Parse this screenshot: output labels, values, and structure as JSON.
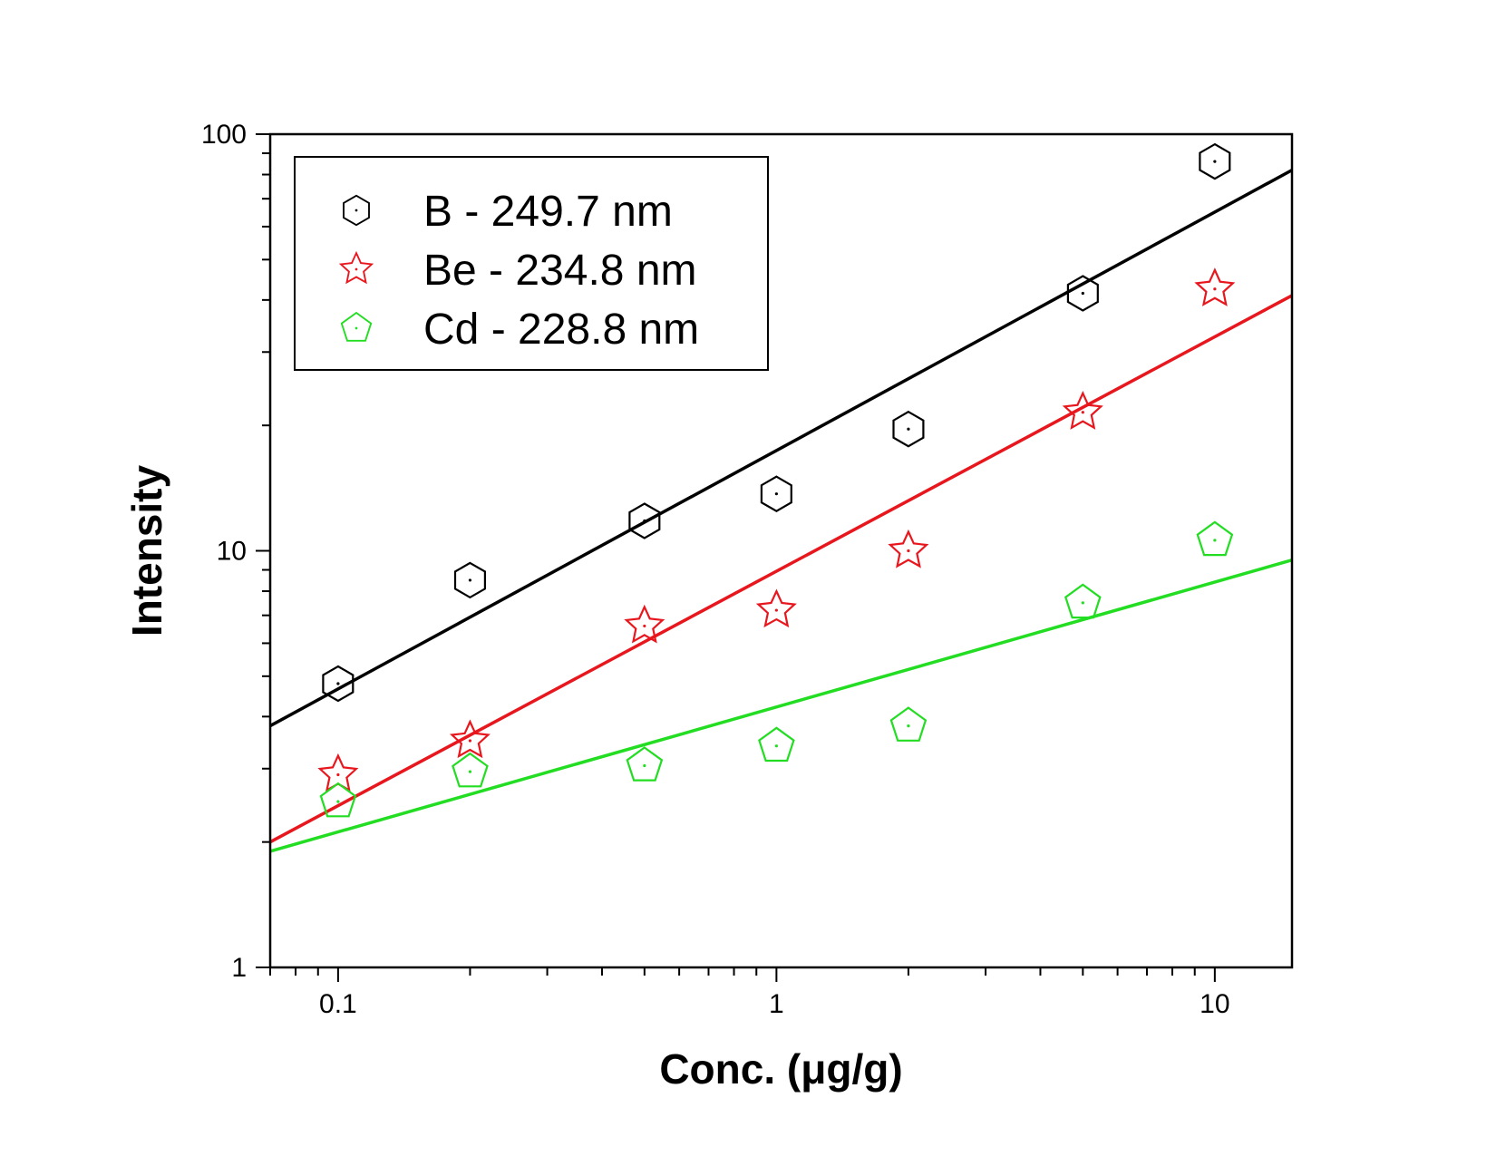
{
  "chart_data": {
    "type": "scatter",
    "xlabel": "Conc. (μg/g)",
    "ylabel": "Intensity",
    "xscale": "log",
    "yscale": "log",
    "xlim": [
      0.07,
      15
    ],
    "ylim": [
      1,
      100
    ],
    "x_ticks": [
      {
        "value": 0.1,
        "label": "0.1"
      },
      {
        "value": 1,
        "label": "1"
      },
      {
        "value": 10,
        "label": "10"
      }
    ],
    "y_ticks": [
      {
        "value": 1,
        "label": "1"
      },
      {
        "value": 10,
        "label": "10"
      },
      {
        "value": 100,
        "label": "100"
      }
    ],
    "legend_position": "top-left",
    "grid": false,
    "series": [
      {
        "name": "B - 249.7 nm",
        "marker": "hexagon",
        "color": "#000000",
        "x": [
          0.1,
          0.2,
          0.5,
          1,
          2,
          5,
          10
        ],
        "y": [
          4.8,
          8.5,
          11.8,
          13.7,
          19.6,
          41.5,
          86
        ],
        "fit": {
          "x": [
            0.07,
            15
          ],
          "y": [
            3.8,
            82
          ]
        }
      },
      {
        "name": "Be - 234.8 nm",
        "marker": "star",
        "color": "#e8171d",
        "x": [
          0.1,
          0.2,
          0.5,
          1,
          2,
          5,
          10
        ],
        "y": [
          2.9,
          3.5,
          6.6,
          7.2,
          10,
          21.5,
          42.5
        ],
        "fit": {
          "x": [
            0.07,
            15
          ],
          "y": [
            2.0,
            41
          ]
        }
      },
      {
        "name": "Cd - 228.8 nm",
        "marker": "pentagon",
        "color": "#22dd22",
        "x": [
          0.1,
          0.2,
          0.5,
          1,
          2,
          5,
          10
        ],
        "y": [
          2.5,
          2.95,
          3.05,
          3.4,
          3.8,
          7.5,
          10.6
        ],
        "fit": {
          "x": [
            0.07,
            15
          ],
          "y": [
            1.9,
            9.5
          ]
        }
      }
    ]
  }
}
